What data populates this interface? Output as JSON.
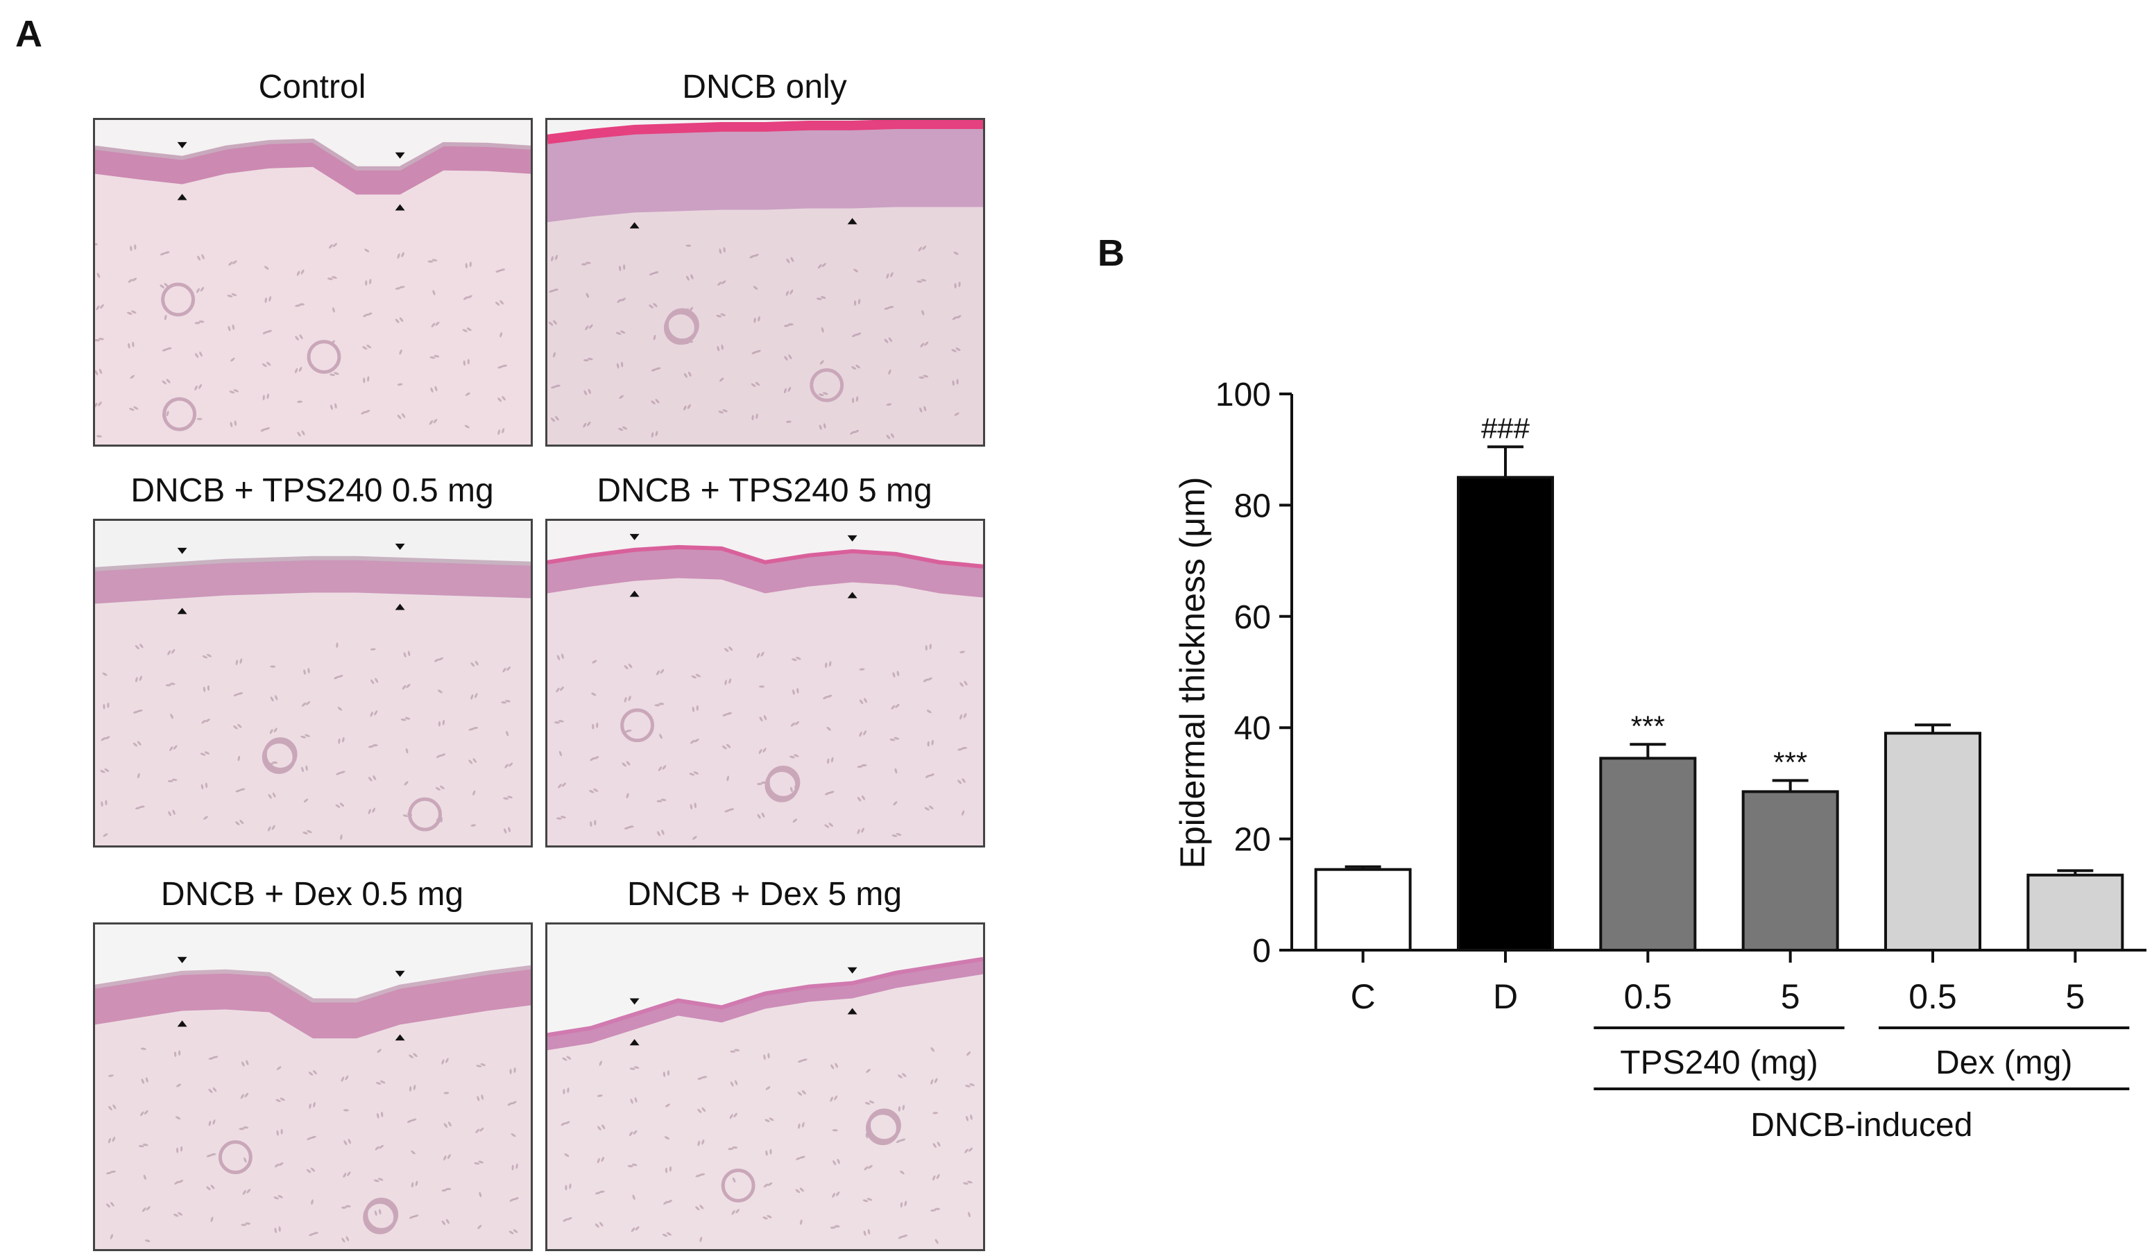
{
  "panel_a": {
    "letter": "A",
    "images": [
      {
        "label": "Control",
        "colors": {
          "tissue": "#efdde3",
          "epidermis": "#c57aa8",
          "keratin": "#c9a9bd",
          "bg": "#f4f2f2"
        }
      },
      {
        "label": "DNCB only",
        "colors": {
          "tissue": "#e8d6dd",
          "epidermis": "#c597be",
          "keratin": "#e5407f",
          "bg": "#f4f3f4"
        }
      },
      {
        "label": "DNCB + TPS240 0.5 mg",
        "colors": {
          "tissue": "#eddde3",
          "epidermis": "#c68bb2",
          "keratin": "#c8b3c1",
          "bg": "#f3f2f3"
        }
      },
      {
        "label": "DNCB + TPS240 5 mg",
        "colors": {
          "tissue": "#ecdbe2",
          "epidermis": "#c784b0",
          "keratin": "#d9609b",
          "bg": "#f4f2f3"
        }
      },
      {
        "label": "DNCB + Dex 0.5 mg",
        "colors": {
          "tissue": "#eddde3",
          "epidermis": "#c883ad",
          "keratin": "#cdb0c2",
          "bg": "#f5f4f4"
        }
      },
      {
        "label": "DNCB + Dex 5 mg",
        "colors": {
          "tissue": "#eedfe4",
          "epidermis": "#c67fb0",
          "keratin": "#d07ab0",
          "bg": "#f5f4f4"
        }
      }
    ]
  },
  "panel_b": {
    "letter": "B"
  },
  "chart_data": {
    "type": "bar",
    "categories": [
      "C",
      "D",
      "0.5",
      "5",
      "0.5",
      "5"
    ],
    "values": [
      14.5,
      85,
      34.5,
      28.5,
      39,
      13.5
    ],
    "errors": [
      0.5,
      5.5,
      2.5,
      2,
      1.5,
      0.8
    ],
    "colors": [
      "#ffffff",
      "#000000",
      "#777777",
      "#777777",
      "#d3d3d3",
      "#d3d3d3"
    ],
    "annotations": [
      "",
      "###",
      "***",
      "***",
      "",
      ""
    ],
    "ylabel": "Epidermal thickness (μm)",
    "ylim": [
      0,
      100
    ],
    "yticks": [
      "0",
      "20",
      "40",
      "60",
      "80",
      "100"
    ],
    "group_labels": [
      "TPS240 (mg)",
      "Dex (mg)"
    ],
    "outer_label": "DNCB-induced",
    "grid": false
  }
}
